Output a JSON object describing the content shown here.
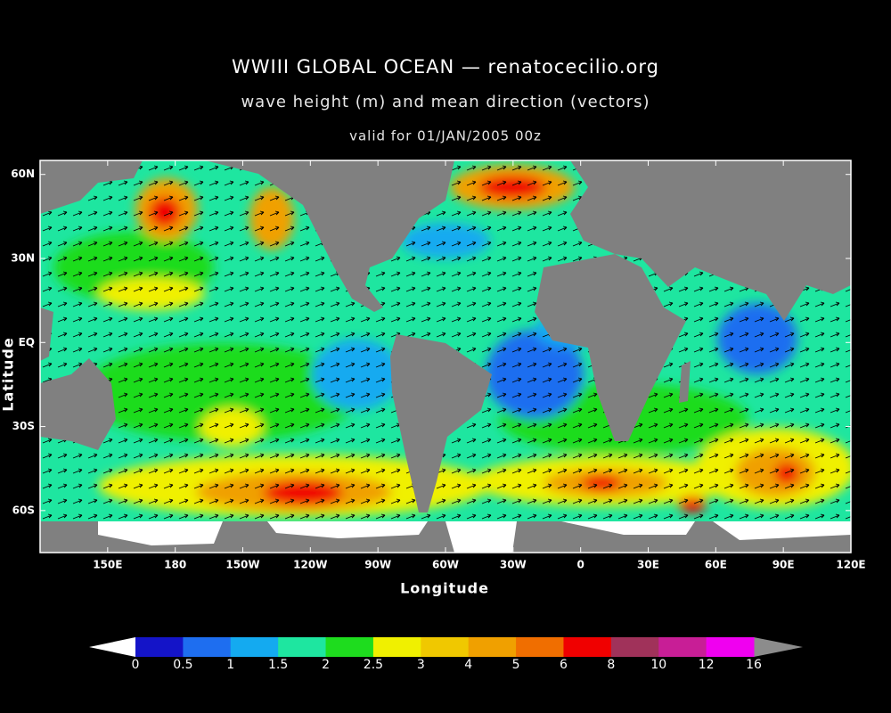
{
  "title": "WWIII GLOBAL OCEAN — renatocecilio.org",
  "subtitle": "wave height (m) and mean direction (vectors)",
  "valid": "valid for 01/JAN/2005 00z",
  "map": {
    "xlabel": "Longitude",
    "ylabel": "Latitude",
    "xlim": [
      120,
      480
    ],
    "ylim": [
      -75,
      65
    ],
    "xticks": [
      {
        "value": 150,
        "label": "150E"
      },
      {
        "value": 180,
        "label": "180"
      },
      {
        "value": 210,
        "label": "150W"
      },
      {
        "value": 240,
        "label": "120W"
      },
      {
        "value": 270,
        "label": "90W"
      },
      {
        "value": 300,
        "label": "60W"
      },
      {
        "value": 330,
        "label": "30W"
      },
      {
        "value": 360,
        "label": "0"
      },
      {
        "value": 390,
        "label": "30E"
      },
      {
        "value": 420,
        "label": "60E"
      },
      {
        "value": 450,
        "label": "90E"
      },
      {
        "value": 480,
        "label": "120E"
      }
    ],
    "yticks": [
      {
        "value": 60,
        "label": "60N"
      },
      {
        "value": 30,
        "label": "30N"
      },
      {
        "value": 0,
        "label": "EQ"
      },
      {
        "value": -30,
        "label": "30S"
      },
      {
        "value": -60,
        "label": "60S"
      }
    ]
  },
  "colorbar": {
    "levels": [
      0,
      0.5,
      1,
      1.5,
      2,
      2.5,
      3,
      4,
      5,
      6,
      8,
      10,
      12,
      16
    ],
    "colors": [
      "#1414c8",
      "#1e6ef0",
      "#14aaf0",
      "#1ee6a0",
      "#1edc1e",
      "#f0f000",
      "#f0c800",
      "#f0a000",
      "#f06e00",
      "#f00000",
      "#a0325a",
      "#c81e96",
      "#f000f0"
    ],
    "under_color": "#ffffff",
    "over_color": "#8c8c8c"
  }
}
